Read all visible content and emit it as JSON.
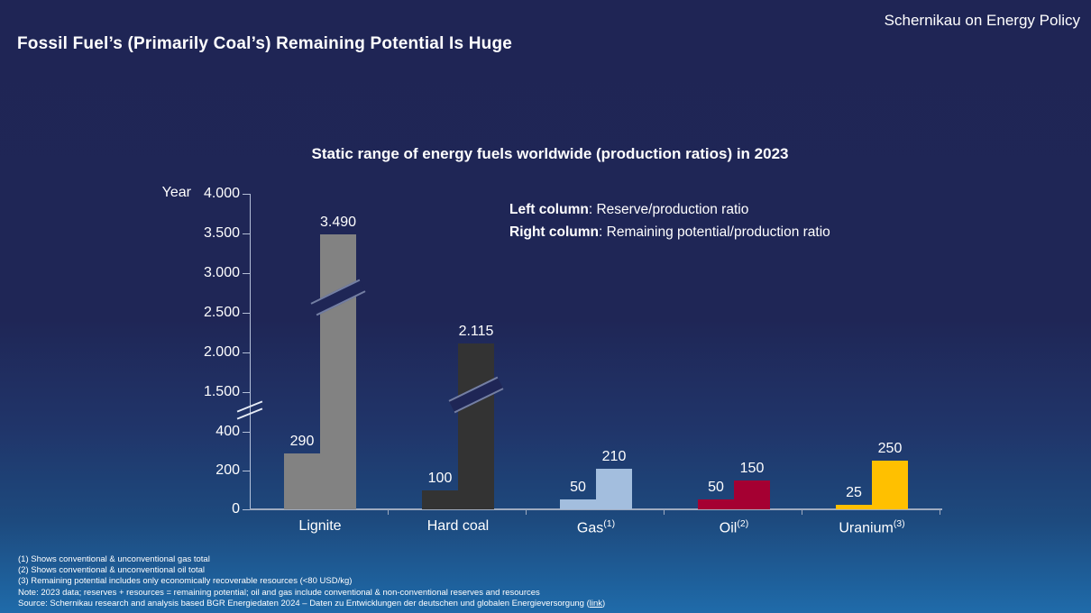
{
  "slide": {
    "brand": "Schernikau on Energy Policy",
    "title": "Fossil Fuel’s (Primarily Coal’s) Remaining Potential Is Huge"
  },
  "chart_data": {
    "type": "bar",
    "title": "Static range of energy fuels worldwide (production ratios) in 2023",
    "ylabel": "Year",
    "xlabel": "",
    "grid": false,
    "legend_position": "top-right",
    "legend": [
      {
        "bold": "Left column",
        "text": ": Reserve/production ratio"
      },
      {
        "bold": "Right column",
        "text": ": Remaining potential/production ratio"
      }
    ],
    "categories": [
      "Lignite",
      "Hard coal",
      "Gas",
      "Oil",
      "Uranium"
    ],
    "category_superscripts": [
      "",
      "",
      "(1)",
      "(2)",
      "(3)"
    ],
    "series": [
      {
        "name": "Reserve/production ratio",
        "values": [
          290,
          100,
          50,
          50,
          25
        ],
        "labels": [
          "290",
          "100",
          "50",
          "50",
          "25"
        ]
      },
      {
        "name": "Remaining potential/production ratio",
        "values": [
          3490,
          2115,
          210,
          150,
          250
        ],
        "labels": [
          "3.490",
          "2.115",
          "210",
          "150",
          "250"
        ]
      }
    ],
    "bar_colors": [
      "#828282",
      "#333333",
      "#A3BEDE",
      "#A50032",
      "#FFC000"
    ],
    "axis_break": {
      "enabled": true,
      "lower_max": 400,
      "upper_min": 1500
    },
    "y_ticks": [
      {
        "label": "0",
        "value": 0
      },
      {
        "label": "200",
        "value": 200
      },
      {
        "label": "400",
        "value": 400
      },
      {
        "label": "1.500",
        "value": 1500
      },
      {
        "label": "2.000",
        "value": 2000
      },
      {
        "label": "2.500",
        "value": 2500
      },
      {
        "label": "3.000",
        "value": 3000
      },
      {
        "label": "3.500",
        "value": 3500
      },
      {
        "label": "4.000",
        "value": 4000
      }
    ],
    "ylim_lower": [
      0,
      400
    ],
    "ylim_upper": [
      1500,
      4000
    ]
  },
  "footnotes": [
    "(1) Shows conventional & unconventional gas total",
    "(2) Shows conventional & unconventional oil total",
    "(3) Remaining potential includes only economically recoverable resources (<80 USD/kg)",
    "Note: 2023 data; reserves + resources = remaining potential; oil and gas include conventional & non-conventional reserves and resources"
  ],
  "source": {
    "prefix": "Source: Schernikau research and analysis based BGR Energiedaten 2024 – Daten zu Entwicklungen der deutschen und globalen Energieversorgung (",
    "link": "link",
    "suffix": ")"
  }
}
